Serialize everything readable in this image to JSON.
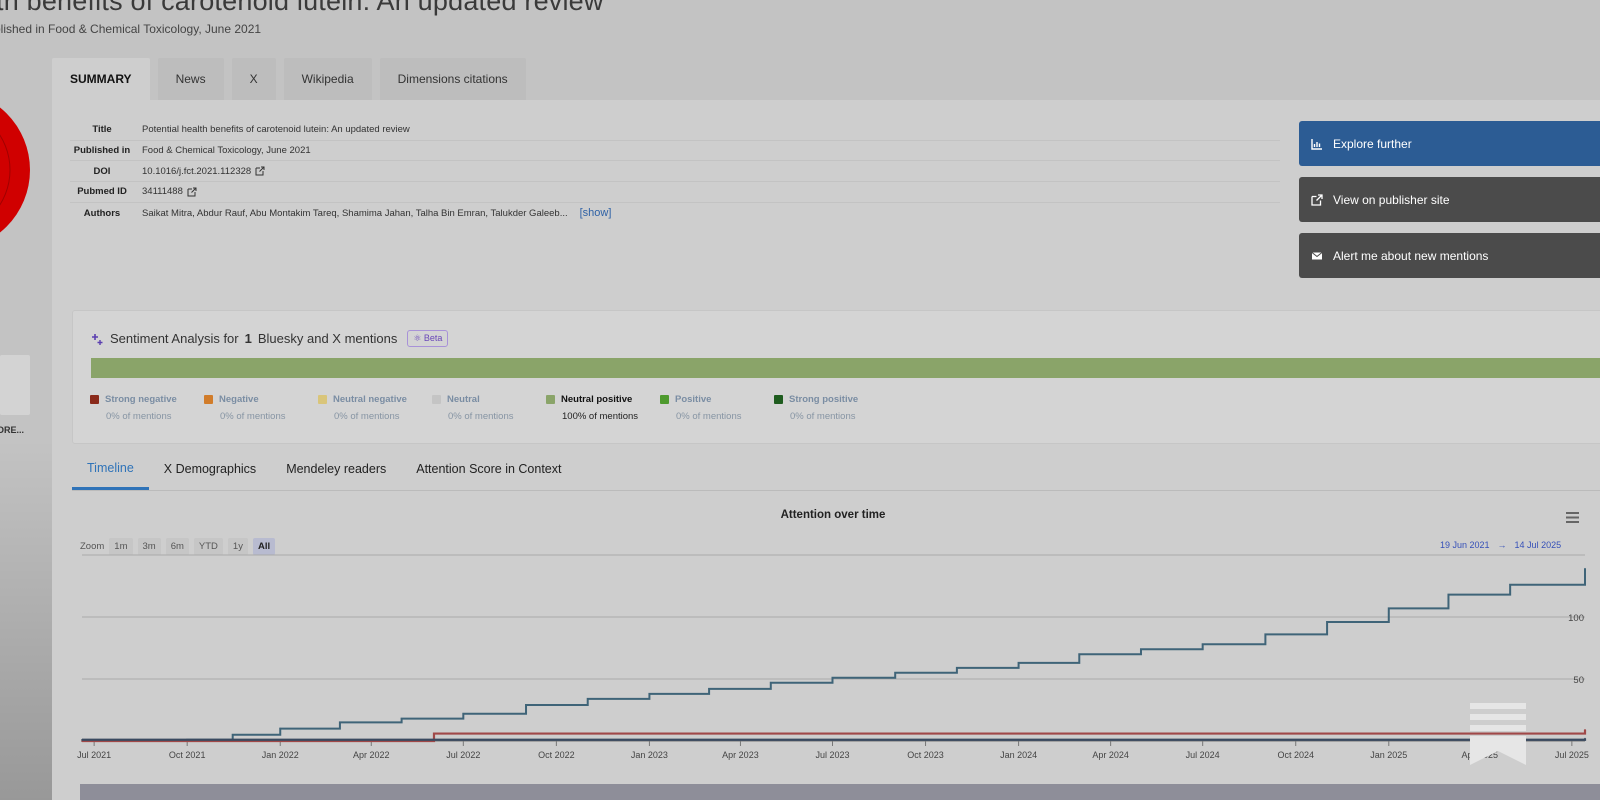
{
  "header": {
    "title": "th benefits of carotenoid lutein: An updated review",
    "subtitle": "blished in Food & Chemical Toxicology, June 2021"
  },
  "sidebar": {
    "more_label": "ORE..."
  },
  "tabs": [
    "SUMMARY",
    "News",
    "X",
    "Wikipedia",
    "Dimensions citations"
  ],
  "summary": {
    "rows": [
      {
        "key": "Title",
        "value": "Potential health benefits of carotenoid lutein: An updated review"
      },
      {
        "key": "Published in",
        "value": "Food & Chemical Toxicology, June 2021"
      },
      {
        "key": "DOI",
        "value": "10.1016/j.fct.2021.112328"
      },
      {
        "key": "Pubmed ID",
        "value": "34111488"
      },
      {
        "key": "Authors",
        "value": "Saikat Mitra, Abdur Rauf, Abu Montakim Tareq, Shamima Jahan, Talha Bin Emran, Talukder Galeeb..."
      }
    ],
    "show_label": "[show]"
  },
  "actions": {
    "explore": "Explore further",
    "publisher": "View on publisher site",
    "alert": "Alert me about new mentions"
  },
  "sentiment": {
    "prefix": "Sentiment Analysis for",
    "count": "1",
    "suffix": "Bluesky and X mentions",
    "beta_label": "Beta",
    "bar_fill_fraction": 1.0,
    "bar_color": "#8aa469",
    "legend": [
      {
        "label": "Strong negative",
        "pct": "0% of mentions",
        "color": "#8a2a1b"
      },
      {
        "label": "Negative",
        "pct": "0% of mentions",
        "color": "#d17c2a"
      },
      {
        "label": "Neutral negative",
        "pct": "0% of mentions",
        "color": "#d9c57a"
      },
      {
        "label": "Neutral",
        "pct": "0% of mentions",
        "color": "#c4c4c4"
      },
      {
        "label": "Neutral positive",
        "pct": "100% of mentions",
        "color": "#8aa469",
        "active": true
      },
      {
        "label": "Positive",
        "pct": "0% of mentions",
        "color": "#4e9a2e"
      },
      {
        "label": "Strong positive",
        "pct": "0% of mentions",
        "color": "#1e5c1e"
      }
    ]
  },
  "subtabs": [
    "Timeline",
    "X Demographics",
    "Mendeley readers",
    "Attention Score in Context"
  ],
  "chart_toolbar": {
    "zoom_label": "Zoom",
    "zoom_options": [
      "1m",
      "3m",
      "6m",
      "YTD",
      "1y",
      "All"
    ],
    "zoom_active": "All",
    "range_from": "19 Jun 2021",
    "range_arrow": "→",
    "range_to": "14 Jul 2025"
  },
  "chart_data": {
    "type": "line",
    "title": "Attention over time",
    "x_tick_labels": [
      "Jul 2021",
      "Oct 2021",
      "Jan 2022",
      "Apr 2022",
      "Jul 2022",
      "Oct 2022",
      "Jan 2023",
      "Apr 2023",
      "Jul 2023",
      "Oct 2023",
      "Jan 2024",
      "Apr 2024",
      "Jul 2024",
      "Oct 2024",
      "Jan 2025",
      "Apr 2025",
      "Jul 2025"
    ],
    "y_tick_labels": [
      "50",
      "100"
    ],
    "ylim": [
      0,
      150
    ],
    "grid": true,
    "series": [
      {
        "color": "#3f6478",
        "x": [
          "2021-06-19",
          "2021-10-01",
          "2021-11-15",
          "2022-01-01",
          "2022-03-01",
          "2022-05-01",
          "2022-07-01",
          "2022-09-01",
          "2022-11-01",
          "2023-01-01",
          "2023-03-01",
          "2023-05-01",
          "2023-07-01",
          "2023-09-01",
          "2023-11-01",
          "2024-01-01",
          "2024-03-01",
          "2024-05-01",
          "2024-07-01",
          "2024-09-01",
          "2024-11-01",
          "2025-01-01",
          "2025-03-01",
          "2025-05-01",
          "2025-07-14"
        ],
        "y": [
          0,
          1,
          5,
          10,
          15,
          18,
          22,
          29,
          34,
          38,
          42,
          47,
          51,
          55,
          59,
          63,
          70,
          74,
          78,
          86,
          96,
          107,
          118,
          126,
          139
        ]
      },
      {
        "color": "#a04848",
        "x": [
          "2021-06-19",
          "2022-06-01",
          "2022-06-02",
          "2025-07-14"
        ],
        "y": [
          0,
          0,
          6,
          9
        ]
      },
      {
        "color": "#3a4a60",
        "x": [
          "2021-06-19",
          "2025-07-14"
        ],
        "y": [
          1,
          2
        ]
      }
    ]
  }
}
